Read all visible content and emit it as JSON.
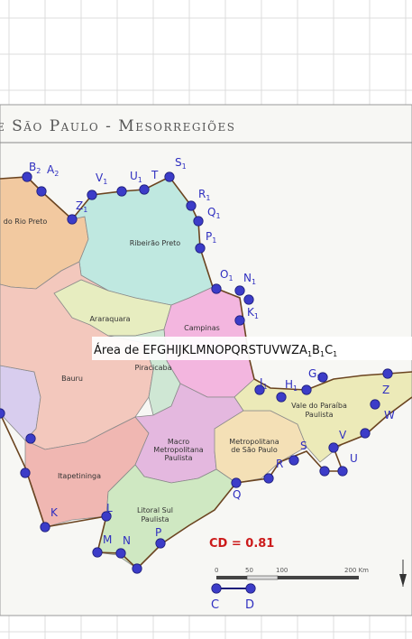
{
  "map": {
    "title": "e São Paulo - Mesorregiões",
    "regions": [
      {
        "id": "rio-preto",
        "name": "do Rio Preto",
        "color": "#f2c9a0"
      },
      {
        "id": "ribeirao-preto",
        "name": "Ribeirão Preto",
        "color": "#bfe8e0"
      },
      {
        "id": "araraquara",
        "name": "Araraquara",
        "color": "#e7edc0"
      },
      {
        "id": "campinas",
        "name": "Campinas",
        "color": "#f3b6df"
      },
      {
        "id": "piracicaba",
        "name": "Piracicaba",
        "color": "#cfe7d4"
      },
      {
        "id": "bauru",
        "name": "Bauru",
        "color": "#f3c8bd"
      },
      {
        "id": "itapetininga",
        "name": "Itapetininga",
        "color": "#f0b7b2"
      },
      {
        "id": "macro-metro",
        "name": "Macro Metropolitana Paulista",
        "color": "#e4b8df"
      },
      {
        "id": "metro-sp",
        "name": "Metropolitana de São Paulo",
        "color": "#f4e0b6"
      },
      {
        "id": "vale-paraiba",
        "name": "Vale do Paraíba Paulista",
        "color": "#eceab8"
      },
      {
        "id": "litoral-sul",
        "name": "Litoral Sul Paulista",
        "color": "#cfe8c2"
      },
      {
        "id": "west-lilac",
        "name": "",
        "color": "#d8cdee"
      }
    ],
    "colors": {
      "border": "#6b4420",
      "point": "#3c3cc8",
      "label": "#2f2fc0",
      "area_box": "#ffffff",
      "cd_text": "#cc1b1b"
    }
  },
  "area_label": "Área de  EFGHIJKLMNOPQRSTUVWZA",
  "area_label_sub": "1",
  "area_label_tail": "B",
  "area_label_tail2": "C",
  "cd_label": "CD = 0.81",
  "scale_bar": {
    "ticks": [
      "0",
      "50",
      "100",
      "200 Km"
    ]
  },
  "point_labels": {
    "B2": "B",
    "B2_sub": "2",
    "A2": "A",
    "A2_sub": "2",
    "Z1": "Z",
    "Z1_sub": "1",
    "V1": "V",
    "V1_sub": "1",
    "U1": "U",
    "U1_sub": "1",
    "T": "T",
    "S1": "S",
    "S1_sub": "1",
    "R1": "R",
    "R1_sub": "1",
    "Q1": "Q",
    "Q1_sub": "1",
    "P1": "P",
    "P1_sub": "1",
    "O1": "O",
    "O1_sub": "1",
    "N1": "N",
    "N1_sub": "1",
    "K1": "K",
    "K1_sub": "1",
    "I1": "I",
    "I1_sub": "1",
    "H1": "H",
    "H1_sub": "1",
    "G1": "G",
    "G1_sub": "1",
    "Z": "Z",
    "W": "W",
    "V": "V",
    "U": "U",
    "S": "S",
    "R": "R",
    "Q": "Q",
    "P": "P",
    "O": "O",
    "N": "N",
    "M": "M",
    "L": "L",
    "K": "K",
    "C": "C",
    "D": "D"
  }
}
